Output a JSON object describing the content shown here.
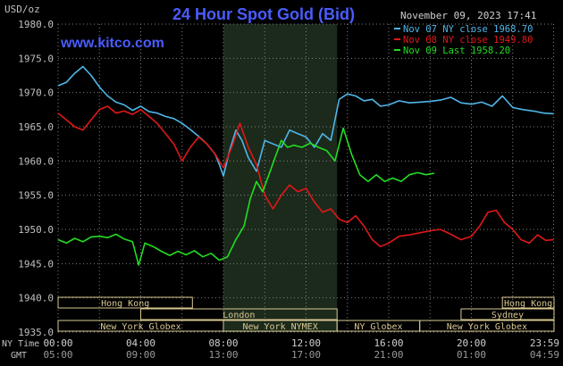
{
  "header": {
    "y_unit": "USD/oz",
    "title": "24 Hour Spot Gold (Bid)",
    "timestamp": "November 09, 2023 17:41",
    "watermark": "www.kitco.com"
  },
  "colors": {
    "background": "#000000",
    "title": "#4a5cff",
    "watermark": "#4a5cff",
    "grid": "#808080",
    "session_shade": "#1c2a1c",
    "session_box": "#d8c890",
    "text": "#c0c0c0",
    "nov07": "#4fb6e8",
    "nov08": "#e01818",
    "nov09": "#22dd22"
  },
  "legend": {
    "position": "top-right",
    "items": [
      {
        "label": "Nov 07 NY close 1968.70",
        "color": "#4fb6e8"
      },
      {
        "label": "Nov 08 NY close 1949.80",
        "color": "#e01818"
      },
      {
        "label": "Nov 09 Last 1958.20",
        "color": "#22dd22"
      }
    ]
  },
  "sessions": [
    {
      "label": "Hong Kong",
      "row": 0,
      "start": 0,
      "end": 6.5
    },
    {
      "label": "Hong Kong",
      "row": 0,
      "start": 21.5,
      "end": 24
    },
    {
      "label": "London",
      "row": 1,
      "start": 4,
      "end": 13.5
    },
    {
      "label": "Sydney",
      "row": 1,
      "start": 19.5,
      "end": 24
    },
    {
      "label": "New York Globex",
      "row": 2,
      "start": 0,
      "end": 8
    },
    {
      "label": "New York NYMEX",
      "row": 2,
      "start": 8,
      "end": 13.5
    },
    {
      "label": "NY Globex",
      "row": 2,
      "start": 13.5,
      "end": 17.5
    },
    {
      "label": "New York Globex",
      "row": 2,
      "start": 17.5,
      "end": 24
    }
  ],
  "time_rows": {
    "ny_label": "NY Time",
    "gmt_label": "GMT",
    "ny_ticks": [
      "00:00",
      "04:00",
      "08:00",
      "12:00",
      "16:00",
      "20:00",
      "23:59"
    ],
    "gmt_ticks": [
      "05:00",
      "09:00",
      "13:00",
      "17:00",
      "21:00",
      "01:00",
      "04:59"
    ]
  },
  "chart_data": {
    "type": "line",
    "title": "24 Hour Spot Gold (Bid)",
    "ylabel": "USD/oz",
    "xlabel": "NY Time",
    "ylim": [
      1935,
      1980
    ],
    "xlim": [
      0,
      24
    ],
    "y_ticks": [
      1935.0,
      1940.0,
      1945.0,
      1950.0,
      1955.0,
      1960.0,
      1965.0,
      1970.0,
      1975.0,
      1980.0
    ],
    "x_ticks": [
      "00:00",
      "04:00",
      "08:00",
      "12:00",
      "16:00",
      "20:00",
      "23:59"
    ],
    "grid": true,
    "shaded_region": [
      8,
      13.5
    ],
    "series": [
      {
        "name": "Nov 07 NY close 1968.70",
        "color": "#4fb6e8",
        "x": [
          0,
          0.4,
          0.8,
          1.2,
          1.6,
          2.0,
          2.4,
          2.8,
          3.2,
          3.6,
          4.0,
          4.4,
          4.8,
          5.2,
          5.6,
          6.0,
          6.4,
          6.8,
          7.2,
          7.6,
          7.8,
          8.0,
          8.3,
          8.6,
          8.9,
          9.2,
          9.6,
          10.0,
          10.4,
          10.8,
          11.2,
          11.6,
          12.0,
          12.4,
          12.8,
          13.2,
          13.6,
          14.0,
          14.4,
          14.8,
          15.2,
          15.6,
          16.0,
          16.5,
          17.0,
          17.5,
          18.0,
          18.5,
          19.0,
          19.5,
          20.0,
          20.5,
          21.0,
          21.5,
          22.0,
          22.5,
          23.0,
          23.5,
          23.98
        ],
        "values": [
          1971.0,
          1971.5,
          1972.8,
          1973.8,
          1972.5,
          1970.8,
          1969.5,
          1968.6,
          1968.2,
          1967.4,
          1968.0,
          1967.2,
          1967.0,
          1966.5,
          1966.2,
          1965.5,
          1964.6,
          1963.6,
          1962.5,
          1961.0,
          1959.5,
          1957.8,
          1961.5,
          1964.5,
          1963.0,
          1960.5,
          1958.5,
          1963.0,
          1962.5,
          1962.0,
          1964.5,
          1964.0,
          1963.5,
          1962.0,
          1964.0,
          1963.0,
          1969.0,
          1969.8,
          1969.5,
          1968.8,
          1969.0,
          1968.0,
          1968.2,
          1968.8,
          1968.5,
          1968.6,
          1968.7,
          1968.9,
          1969.3,
          1968.5,
          1968.3,
          1968.6,
          1968.0,
          1969.5,
          1967.8,
          1967.5,
          1967.3,
          1967.0,
          1966.9
        ]
      },
      {
        "name": "Nov 08 NY close 1949.80",
        "color": "#e01818",
        "x": [
          0,
          0.4,
          0.8,
          1.2,
          1.6,
          2.0,
          2.4,
          2.8,
          3.2,
          3.6,
          4.0,
          4.4,
          4.8,
          5.2,
          5.6,
          6.0,
          6.4,
          6.8,
          7.2,
          7.6,
          8.0,
          8.4,
          8.8,
          9.2,
          9.6,
          10.0,
          10.4,
          10.8,
          11.2,
          11.6,
          12.0,
          12.4,
          12.8,
          13.2,
          13.6,
          14.0,
          14.4,
          14.8,
          15.2,
          15.6,
          16.0,
          16.5,
          17.0,
          17.5,
          18.0,
          18.5,
          19.0,
          19.5,
          20.0,
          20.4,
          20.8,
          21.2,
          21.6,
          22.0,
          22.4,
          22.8,
          23.2,
          23.6,
          23.98
        ],
        "values": [
          1967.0,
          1966.0,
          1965.0,
          1964.5,
          1966.0,
          1967.5,
          1968.0,
          1967.0,
          1967.3,
          1966.8,
          1967.5,
          1966.5,
          1965.5,
          1964.0,
          1962.5,
          1960.0,
          1962.0,
          1963.5,
          1962.5,
          1961.0,
          1959.0,
          1962.0,
          1965.5,
          1962.0,
          1959.5,
          1955.0,
          1953.0,
          1955.0,
          1956.5,
          1955.5,
          1956.0,
          1954.0,
          1952.5,
          1953.0,
          1951.5,
          1951.0,
          1952.0,
          1950.5,
          1948.5,
          1947.5,
          1948.0,
          1949.0,
          1949.2,
          1949.5,
          1949.8,
          1950.0,
          1949.3,
          1948.5,
          1949.0,
          1950.5,
          1952.5,
          1952.8,
          1951.0,
          1950.0,
          1948.5,
          1948.0,
          1949.2,
          1948.4,
          1948.5
        ]
      },
      {
        "name": "Nov 09 Last 1958.20",
        "color": "#22dd22",
        "x": [
          0,
          0.4,
          0.8,
          1.2,
          1.6,
          2.0,
          2.4,
          2.8,
          3.2,
          3.6,
          3.9,
          4.2,
          4.6,
          5.0,
          5.4,
          5.8,
          6.2,
          6.6,
          7.0,
          7.4,
          7.8,
          8.2,
          8.6,
          9.0,
          9.3,
          9.6,
          9.9,
          10.2,
          10.5,
          10.8,
          11.1,
          11.4,
          11.8,
          12.2,
          12.6,
          13.0,
          13.4,
          13.8,
          14.2,
          14.6,
          15.0,
          15.4,
          15.8,
          16.2,
          16.6,
          17.0,
          17.4,
          17.8,
          18.2
        ],
        "values": [
          1948.5,
          1948.0,
          1948.7,
          1948.2,
          1948.9,
          1949.0,
          1948.8,
          1949.3,
          1948.6,
          1948.2,
          1944.8,
          1948.0,
          1947.5,
          1946.8,
          1946.2,
          1946.8,
          1946.3,
          1946.9,
          1946.0,
          1946.5,
          1945.5,
          1946.0,
          1948.5,
          1950.5,
          1954.5,
          1957.0,
          1955.5,
          1958.0,
          1960.5,
          1963.0,
          1962.0,
          1962.3,
          1962.0,
          1962.6,
          1962.0,
          1961.5,
          1960.0,
          1964.8,
          1961.0,
          1958.0,
          1957.0,
          1958.0,
          1957.0,
          1957.5,
          1957.0,
          1958.0,
          1958.3,
          1958.0,
          1958.2
        ]
      }
    ]
  }
}
